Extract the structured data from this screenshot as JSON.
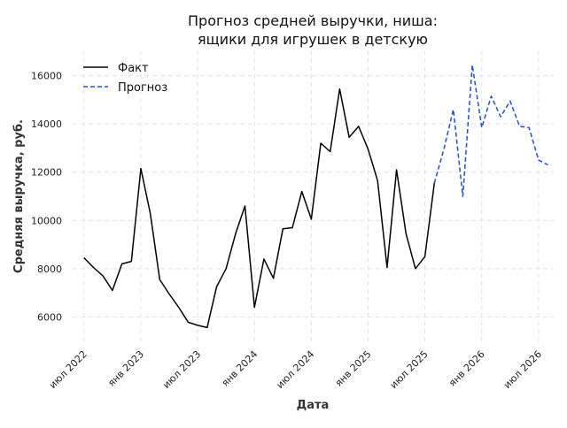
{
  "chart_data": {
    "type": "line",
    "title": "Прогноз средней выручки, ниша:\nящики для игрушек в детскую",
    "title_lines": [
      "Прогноз средней выручки, ниша:",
      "ящики для игрушек в детскую"
    ],
    "xlabel": "Дата",
    "ylabel": "Средняя выручка, руб.",
    "x_ticks": [
      "июл 2022",
      "янв 2023",
      "июл 2023",
      "янв 2024",
      "июл 2024",
      "янв 2025",
      "июл 2025",
      "янв 2026",
      "июл 2026"
    ],
    "y_ticks": [
      6000,
      8000,
      10000,
      12000,
      14000,
      16000
    ],
    "y_tick_labels": [
      "6000",
      "8000",
      "10000",
      "12000",
      "14000",
      "16000"
    ],
    "ylim": [
      4950,
      17050
    ],
    "grid": true,
    "legend_position": "top-left",
    "series": [
      {
        "name": "Факт",
        "color": "#000000",
        "style": "solid",
        "x": [
          "2022-07",
          "2022-08",
          "2022-09",
          "2022-10",
          "2022-11",
          "2022-12",
          "2023-01",
          "2023-02",
          "2023-03",
          "2023-04",
          "2023-05",
          "2023-06",
          "2023-07",
          "2023-08",
          "2023-09",
          "2023-10",
          "2023-11",
          "2023-12",
          "2024-01",
          "2024-02",
          "2024-03",
          "2024-04",
          "2024-05",
          "2024-06",
          "2024-07",
          "2024-08",
          "2024-09",
          "2024-10",
          "2024-11",
          "2024-12",
          "2025-01",
          "2025-02",
          "2025-03",
          "2025-04",
          "2025-05",
          "2025-06",
          "2025-07",
          "2025-08"
        ],
        "values": [
          8450,
          8050,
          7700,
          7100,
          8200,
          8300,
          12150,
          10300,
          7550,
          6950,
          6400,
          5780,
          5650,
          5560,
          7250,
          8000,
          9450,
          10600,
          6400,
          8400,
          7600,
          9650,
          9700,
          11200,
          10050,
          13200,
          12850,
          15450,
          13450,
          13900,
          12950,
          11650,
          8050,
          12100,
          9450,
          8000,
          8500,
          11550
        ]
      },
      {
        "name": "Прогноз",
        "color": "#1f4fe0",
        "style": "dashed",
        "x": [
          "2025-08",
          "2025-09",
          "2025-10",
          "2025-11",
          "2025-12",
          "2026-01",
          "2026-02",
          "2026-03",
          "2026-04",
          "2026-05",
          "2026-06",
          "2026-07",
          "2026-08"
        ],
        "values": [
          11550,
          12950,
          14600,
          11000,
          16450,
          13850,
          15150,
          14300,
          14950,
          13900,
          13850,
          12500,
          12300
        ]
      }
    ]
  }
}
